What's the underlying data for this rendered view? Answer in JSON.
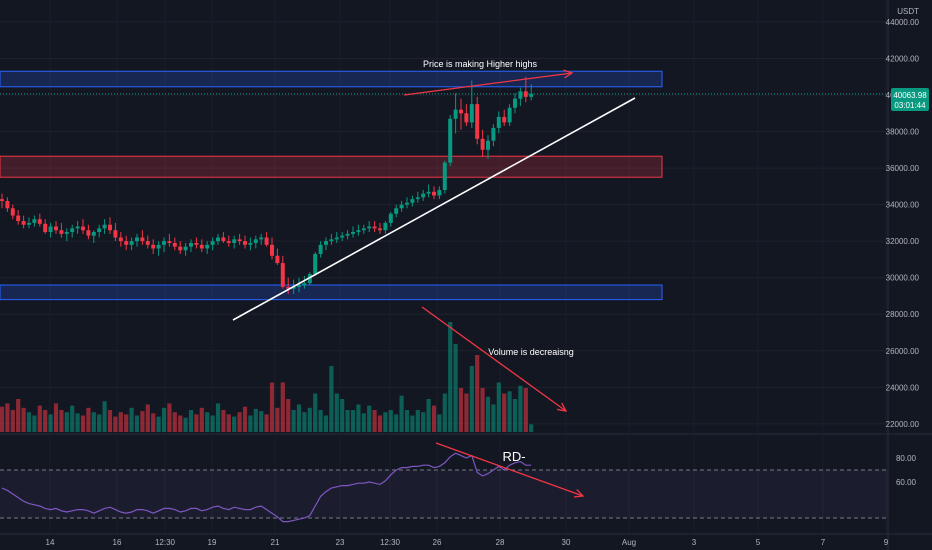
{
  "chart_data": {
    "type": "candlestick",
    "quote_currency": "USDT",
    "price_axis": {
      "ticks": [
        "44000.00",
        "42000.00",
        "40000.00",
        "38000.00",
        "36000.00",
        "34000.00",
        "32000.00",
        "30000.00",
        "28000.00",
        "26000.00",
        "24000.00",
        "22000.00"
      ],
      "tick_values": [
        44000,
        42000,
        40000,
        38000,
        36000,
        34000,
        32000,
        30000,
        28000,
        26000,
        24000,
        22000
      ],
      "range": [
        21500,
        45200
      ]
    },
    "rsi_axis": {
      "ticks": [
        "80.00",
        "60.00"
      ],
      "tick_values": [
        80,
        60
      ],
      "band": [
        30,
        70
      ]
    },
    "time_axis": {
      "labels": [
        "14",
        "16",
        "12:30",
        "19",
        "21",
        "23",
        "12:30",
        "26",
        "28",
        "30",
        "Aug",
        "3",
        "5",
        "7",
        "9"
      ]
    },
    "last_price": "40063.98",
    "countdown": "03:01:44",
    "zones": [
      {
        "kind": "resistance",
        "color": "#2962ff",
        "price_low": 40450,
        "price_high": 41300
      },
      {
        "kind": "mid",
        "color": "#f23645",
        "price_low": 35500,
        "price_high": 36650
      },
      {
        "kind": "support",
        "color": "#2962ff",
        "price_low": 28800,
        "price_high": 29600
      }
    ],
    "series": {
      "open": [
        34300,
        34200,
        33800,
        33400,
        33100,
        32900,
        33000,
        33200,
        32950,
        32500,
        32800,
        32600,
        32400,
        32500,
        32700,
        32800,
        32600,
        32300,
        32500,
        32700,
        32900,
        32600,
        32200,
        32000,
        31800,
        32000,
        32200,
        32000,
        31800,
        31600,
        31800,
        32000,
        31900,
        31700,
        31500,
        31700,
        31900,
        31800,
        31600,
        31800,
        32000,
        32200,
        32000,
        31900,
        32100,
        32000,
        31800,
        31900,
        32100,
        32200,
        31800,
        31200,
        30800,
        29500,
        29400,
        29500,
        29600,
        29700,
        30200,
        31300,
        31800,
        32000,
        32100,
        32200,
        32300,
        32400,
        32500,
        32600,
        32700,
        32800,
        32700,
        32600,
        33000,
        33500,
        33800,
        34000,
        34100,
        34300,
        34400,
        34600,
        34700,
        34500,
        34800,
        36300,
        38700,
        39200,
        39000,
        38500,
        39500,
        37600,
        37000,
        37500,
        38200,
        38800,
        38500,
        39300,
        39800,
        40200,
        39900
      ],
      "high": [
        34600,
        34400,
        34000,
        33700,
        33400,
        33300,
        33400,
        33500,
        33200,
        33000,
        33100,
        33000,
        32700,
        32900,
        33100,
        33200,
        32900,
        32600,
        32900,
        33200,
        33300,
        33000,
        32500,
        32300,
        32200,
        32400,
        32600,
        32300,
        32100,
        32000,
        32200,
        32400,
        32200,
        32000,
        31900,
        32100,
        32200,
        32100,
        32000,
        32200,
        32400,
        32500,
        32300,
        32300,
        32400,
        32300,
        32200,
        32300,
        32400,
        32500,
        32200,
        31600,
        31200,
        30000,
        29900,
        30000,
        30100,
        30300,
        31400,
        32000,
        32200,
        32400,
        32500,
        32500,
        32600,
        32800,
        32900,
        32900,
        33100,
        33100,
        33000,
        33100,
        33600,
        34000,
        34200,
        34400,
        34500,
        34700,
        34800,
        35100,
        35000,
        35000,
        36400,
        38900,
        40100,
        39800,
        39500,
        40800,
        39900,
        38100,
        37800,
        38400,
        39100,
        39200,
        39500,
        40100,
        40400,
        41000,
        40600
      ],
      "low": [
        33800,
        33600,
        33200,
        32900,
        32700,
        32700,
        32800,
        32800,
        32400,
        32200,
        32400,
        32200,
        32000,
        32200,
        32400,
        32400,
        32100,
        31900,
        32200,
        32400,
        32400,
        32000,
        31700,
        31500,
        31500,
        31700,
        31800,
        31600,
        31300,
        31200,
        31400,
        31700,
        31500,
        31300,
        31200,
        31400,
        31600,
        31400,
        31300,
        31500,
        31800,
        31900,
        31700,
        31600,
        31800,
        31600,
        31500,
        31600,
        31800,
        31700,
        31000,
        30700,
        29400,
        29100,
        29100,
        29200,
        29400,
        29600,
        30100,
        31100,
        31500,
        31800,
        31900,
        32000,
        32100,
        32200,
        32300,
        32400,
        32500,
        32500,
        32400,
        32400,
        32800,
        33300,
        33600,
        33800,
        33900,
        34100,
        34200,
        34400,
        34300,
        34300,
        34600,
        36100,
        37900,
        38100,
        38300,
        38200,
        37300,
        36600,
        36500,
        37200,
        37900,
        38300,
        38300,
        39000,
        39400,
        39600,
        39700
      ],
      "close": [
        34200,
        33800,
        33400,
        33100,
        32900,
        33000,
        33200,
        32950,
        32500,
        32800,
        32600,
        32400,
        32500,
        32700,
        32800,
        32600,
        32300,
        32500,
        32700,
        32900,
        32600,
        32200,
        32000,
        31800,
        32000,
        32200,
        32000,
        31800,
        31600,
        31800,
        32000,
        31900,
        31700,
        31500,
        31700,
        31900,
        31800,
        31600,
        31800,
        32000,
        32200,
        32000,
        31900,
        32100,
        32000,
        31800,
        31900,
        32100,
        32200,
        31800,
        31200,
        30800,
        29500,
        29400,
        29500,
        29600,
        29700,
        30200,
        31300,
        31800,
        32000,
        32100,
        32200,
        32300,
        32400,
        32500,
        32600,
        32700,
        32800,
        32700,
        32600,
        33000,
        33500,
        33800,
        34000,
        34100,
        34300,
        34400,
        34600,
        34700,
        34500,
        34800,
        36300,
        38700,
        39200,
        39000,
        38500,
        39500,
        37600,
        37000,
        37500,
        38200,
        38800,
        38500,
        39300,
        39800,
        40200,
        39900,
        40063.98
      ],
      "volume": [
        0.23,
        0.26,
        0.2,
        0.3,
        0.22,
        0.18,
        0.15,
        0.24,
        0.2,
        0.16,
        0.26,
        0.2,
        0.18,
        0.24,
        0.17,
        0.15,
        0.22,
        0.18,
        0.16,
        0.28,
        0.2,
        0.14,
        0.18,
        0.16,
        0.22,
        0.15,
        0.19,
        0.25,
        0.17,
        0.14,
        0.22,
        0.26,
        0.18,
        0.15,
        0.13,
        0.2,
        0.16,
        0.22,
        0.18,
        0.15,
        0.26,
        0.2,
        0.16,
        0.14,
        0.18,
        0.23,
        0.15,
        0.21,
        0.19,
        0.16,
        0.45,
        0.22,
        0.45,
        0.3,
        0.2,
        0.25,
        0.18,
        0.22,
        0.35,
        0.2,
        0.15,
        0.6,
        0.35,
        0.3,
        0.2,
        0.2,
        0.25,
        0.17,
        0.24,
        0.2,
        0.15,
        0.18,
        0.2,
        0.16,
        0.33,
        0.2,
        0.15,
        0.2,
        0.18,
        0.3,
        0.24,
        0.16,
        0.35,
        1.0,
        0.8,
        0.4,
        0.35,
        0.6,
        0.7,
        0.4,
        0.32,
        0.25,
        0.45,
        0.35,
        0.37,
        0.3,
        0.42,
        0.4,
        0.07
      ],
      "rsi": [
        55,
        53,
        50,
        47,
        44,
        42,
        41,
        40,
        38,
        37,
        38,
        36,
        35,
        36,
        37,
        37,
        36,
        34,
        36,
        38,
        39,
        37,
        35,
        34,
        35,
        37,
        37,
        36,
        34,
        36,
        38,
        38,
        37,
        35,
        36,
        38,
        38,
        36,
        37,
        39,
        40,
        38,
        37,
        39,
        38,
        37,
        37,
        39,
        40,
        37,
        34,
        31,
        27,
        27,
        28,
        29,
        30,
        32,
        40,
        48,
        52,
        55,
        56,
        57,
        57,
        58,
        59,
        59,
        60,
        59,
        58,
        61,
        66,
        70,
        72,
        72,
        73,
        73,
        74,
        74,
        72,
        73,
        76,
        81,
        84,
        82,
        80,
        82,
        68,
        65,
        67,
        70,
        73,
        70,
        74,
        76,
        77,
        74,
        74
      ]
    },
    "annotations": [
      {
        "text": "Price is making Higher highs",
        "pane": "price"
      },
      {
        "text": "Volume is decreaisng",
        "pane": "volume"
      },
      {
        "text": "RD-",
        "pane": "rsi"
      }
    ],
    "colors": {
      "up": "#089981",
      "down": "#f23645",
      "rsi": "#7e57c2",
      "trendline": "#ffffff",
      "arrow": "#f23645"
    }
  }
}
